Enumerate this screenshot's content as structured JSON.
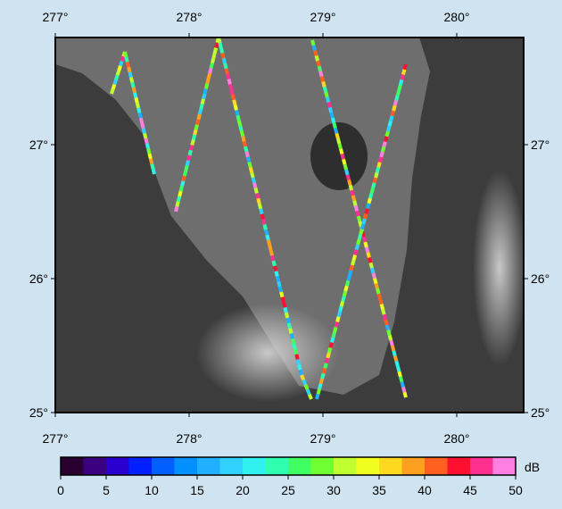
{
  "map": {
    "lonlim": [
      277,
      280.5
    ],
    "latlim": [
      25,
      27.8
    ],
    "lon_ticks": [
      {
        "value": 277,
        "label": "277°"
      },
      {
        "value": 278,
        "label": "278°"
      },
      {
        "value": 279,
        "label": "279°"
      },
      {
        "value": 280,
        "label": "280°"
      }
    ],
    "lat_ticks": [
      {
        "value": 25,
        "label": "25°"
      },
      {
        "value": 26,
        "label": "26°"
      },
      {
        "value": 27,
        "label": "27°"
      }
    ]
  },
  "colorbar": {
    "unit": "dB",
    "range": [
      0,
      50
    ],
    "ticks": [
      0,
      5,
      10,
      15,
      20,
      25,
      30,
      35,
      40,
      45,
      50
    ],
    "colors": [
      "#2a0030",
      "#3a0080",
      "#2a00d0",
      "#0020ff",
      "#0060ff",
      "#0090ff",
      "#20b0ff",
      "#30d0ff",
      "#30f0f0",
      "#30ffb0",
      "#40ff60",
      "#70ff30",
      "#c0ff30",
      "#f0ff20",
      "#ffd820",
      "#ffa020",
      "#ff6020",
      "#ff1030",
      "#ff3090",
      "#ff80e0"
    ]
  }
}
